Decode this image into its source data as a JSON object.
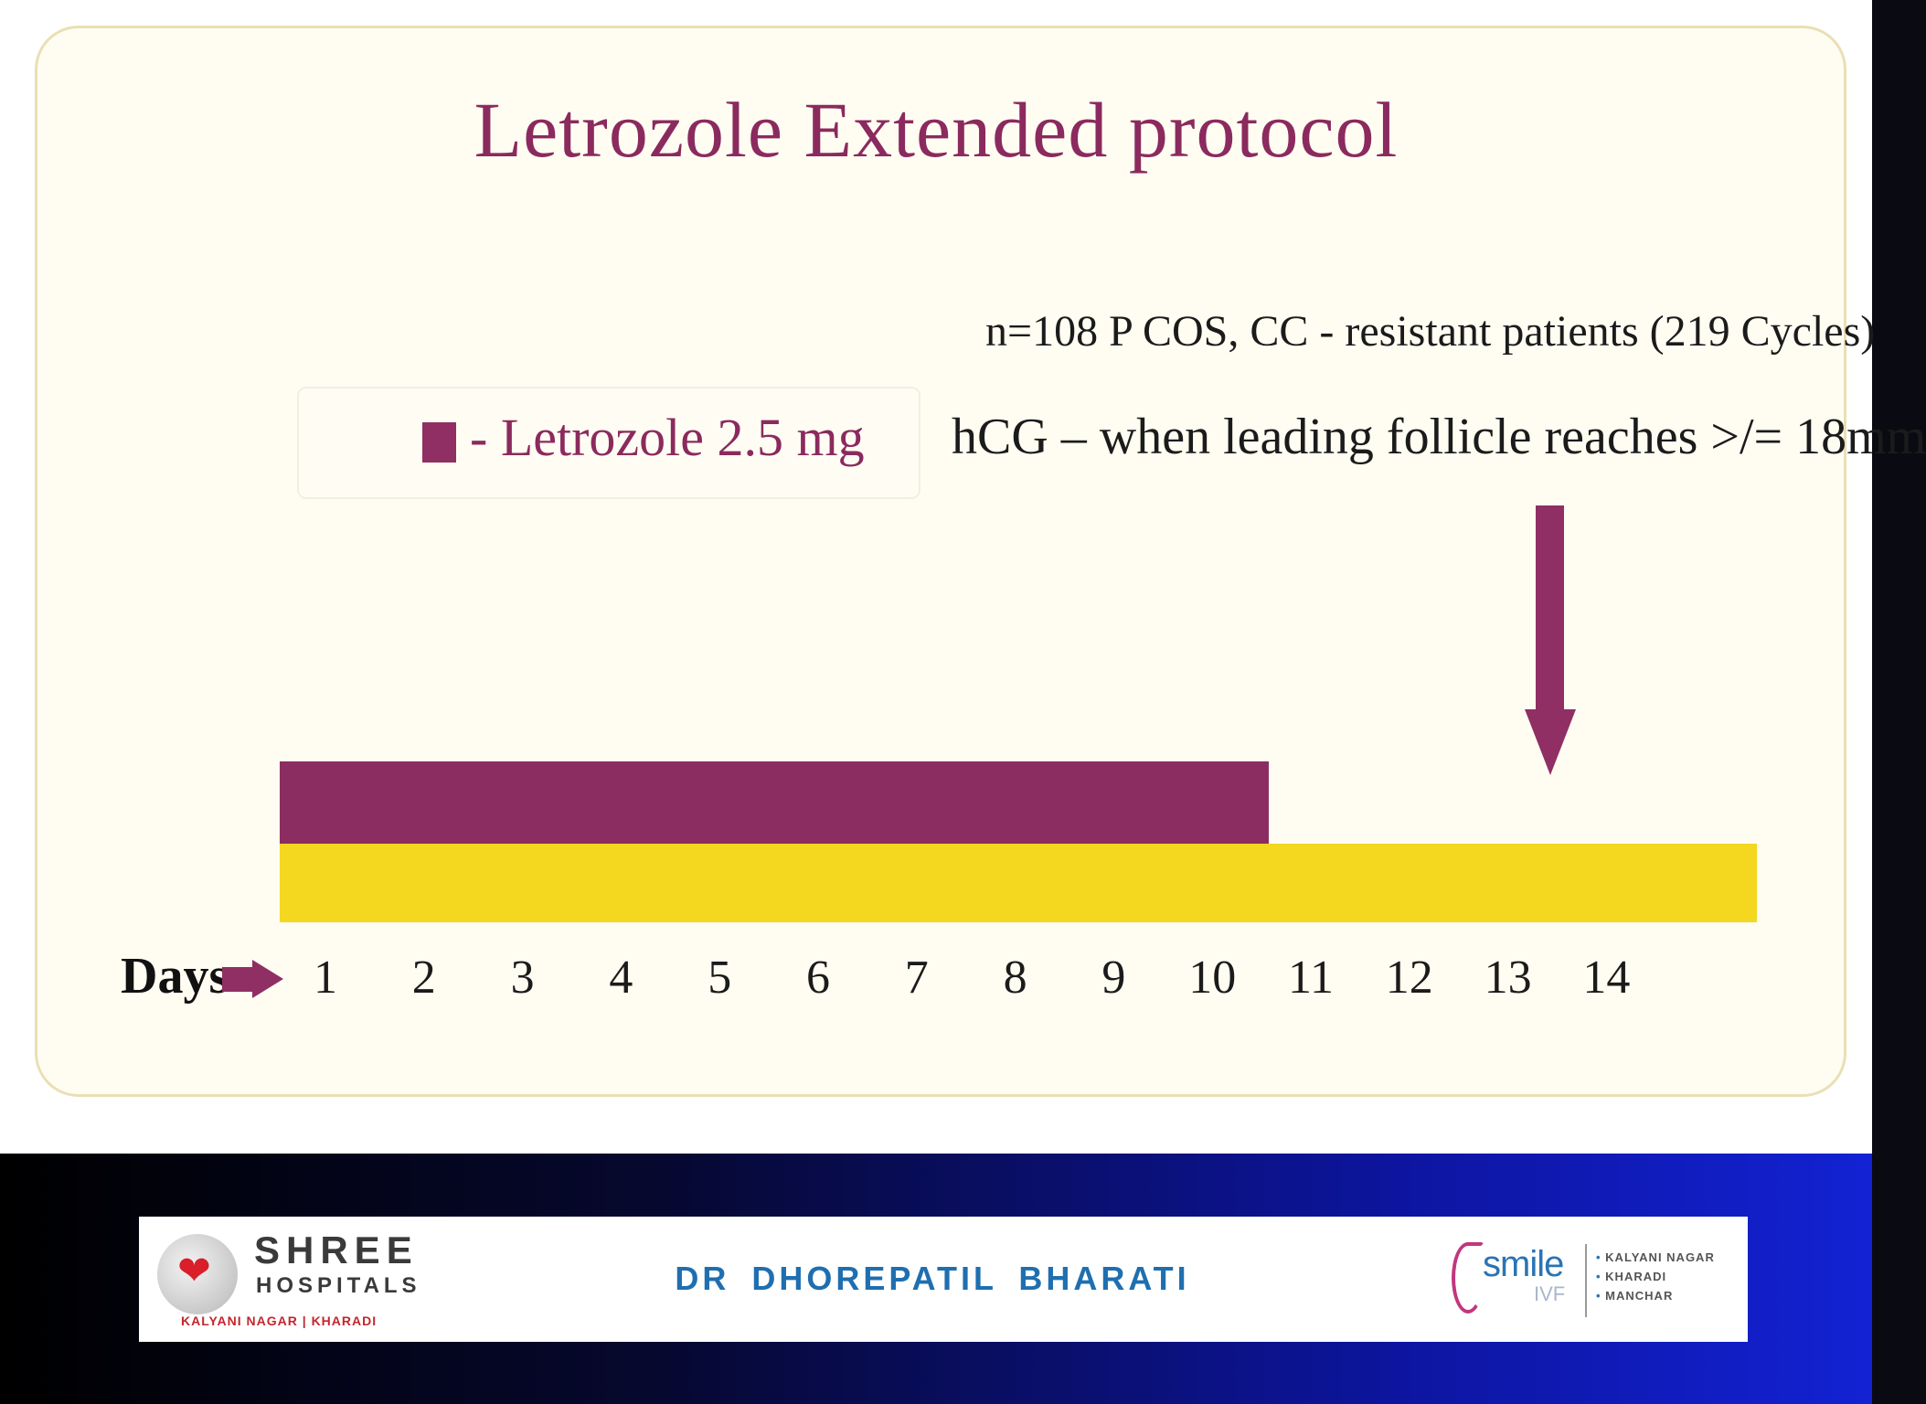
{
  "slide": {
    "title": "Letrozole Extended protocol",
    "study_note": "n=108 P COS, CC - resistant patients (219 Cycles)",
    "legend": {
      "label": "- Letrozole 2.5 mg",
      "swatch_color": "#8f2f63"
    },
    "trigger_note": "hCG – when leading follicle reaches >/= 18mm",
    "days_label": "Days",
    "days": [
      "1",
      "2",
      "3",
      "4",
      "5",
      "6",
      "7",
      "8",
      "9",
      "10",
      "11",
      "12",
      "13",
      "14"
    ],
    "colors": {
      "title": "#8b2a5e",
      "letrozole": "#8c2d61",
      "cycle": "#f4d71f"
    }
  },
  "chart_data": {
    "type": "timeline",
    "x_unit": "day",
    "x": [
      1,
      2,
      3,
      4,
      5,
      6,
      7,
      8,
      9,
      10,
      11,
      12,
      13,
      14
    ],
    "bars": [
      {
        "name": "Letrozole 2.5 mg",
        "start_day": 0.5,
        "end_day": 10.5,
        "color": "#8c2d61"
      },
      {
        "start_day": 0.5,
        "end_day": 15.5,
        "color": "#f4d71f"
      }
    ],
    "markers": [
      {
        "label": "hCG – when leading follicle reaches >/= 18mm",
        "day": 13.4,
        "shape": "down-arrow"
      }
    ]
  },
  "footer": {
    "left_logo": {
      "name": "SHREE",
      "sub": "HOSPITALS",
      "locations": "KALYANI NAGAR  |  KHARADI",
      "icon": "heart-icon"
    },
    "doctor": "DR  DHOREPATIL  BHARATI",
    "right_logo": {
      "name": "smile",
      "sub": "IVF",
      "locations": [
        "KALYANI NAGAR",
        "KHARADI",
        "MANCHAR"
      ]
    }
  }
}
